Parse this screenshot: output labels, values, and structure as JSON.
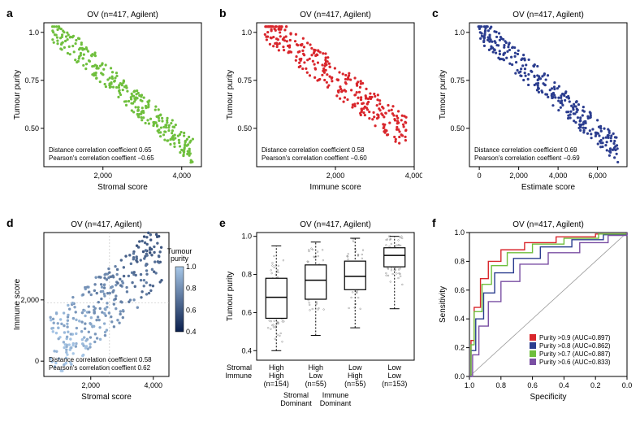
{
  "figure": {
    "dataset_label": "OV (n=417, Agilent)",
    "title_fontsize": 10,
    "axis_label_fontsize": 10,
    "tick_fontsize": 9,
    "stat_fontsize": 8,
    "background_color": "#ffffff",
    "box_stroke": "#000000"
  },
  "panels": {
    "a": {
      "label": "a",
      "type": "scatter",
      "xlabel": "Stromal score",
      "ylabel": "Tumour purity",
      "xlim": [
        500,
        4500
      ],
      "ylim": [
        0.3,
        1.05
      ],
      "xticks": [
        2000,
        4000
      ],
      "yticks": [
        0.5,
        0.75,
        1.0
      ],
      "marker_color": "#6fbf3d",
      "marker_size": 1.6,
      "stats": [
        "Distance correlation coefficient 0.65",
        "Pearson's correlation coeffient −0.65"
      ],
      "n_points": 300,
      "seed": 11,
      "slope": -0.00018,
      "intercept": 1.15,
      "noise": 0.07
    },
    "b": {
      "label": "b",
      "type": "scatter",
      "xlabel": "Immune score",
      "ylabel": "Tumour purity",
      "xlim": [
        0,
        4000
      ],
      "ylim": [
        0.3,
        1.05
      ],
      "xticks": [
        2000,
        4000
      ],
      "yticks": [
        0.5,
        0.75,
        1.0
      ],
      "marker_color": "#d9262c",
      "marker_size": 1.6,
      "stats": [
        "Distance correlation coefficient 0.58",
        "Pearson's correlation coeffient −0.60"
      ],
      "n_points": 300,
      "seed": 22,
      "slope": -0.00016,
      "intercept": 1.08,
      "noise": 0.09
    },
    "c": {
      "label": "c",
      "type": "scatter",
      "xlabel": "Estimate score",
      "ylabel": "Tumour purity",
      "xlim": [
        -500,
        7500
      ],
      "ylim": [
        0.3,
        1.05
      ],
      "xticks": [
        0,
        2000,
        4000,
        6000
      ],
      "yticks": [
        0.5,
        0.75,
        1.0
      ],
      "marker_color": "#2b3d8f",
      "marker_size": 1.6,
      "stats": [
        "Distance correlation coefficient 0.69",
        "Pearson's correlation coeffient −0.69"
      ],
      "n_points": 300,
      "seed": 33,
      "slope": -9e-05,
      "intercept": 1.02,
      "noise": 0.07
    },
    "d": {
      "label": "d",
      "type": "scatter-gradient",
      "xlabel": "Stromal score",
      "ylabel": "Immune score",
      "xlim": [
        500,
        4500
      ],
      "ylim": [
        -500,
        4200
      ],
      "xticks": [
        2000,
        4000
      ],
      "yticks": [
        0,
        2000
      ],
      "color_label": "Tumour\npurity",
      "color_ticks": [
        1.0,
        0.8,
        0.6,
        0.4
      ],
      "color_light": "#a8c8e8",
      "color_dark": "#0a1f4d",
      "marker_size": 1.7,
      "stats": [
        "Distance correlation coefficient 0.58",
        "Pearson's correlation coeffient 0.62"
      ],
      "vline": 2600,
      "hline": 1900,
      "n_points": 300,
      "seed": 44
    },
    "e": {
      "label": "e",
      "type": "boxplot",
      "ylabel": "Tumour purity",
      "ylim": [
        0.35,
        1.02
      ],
      "yticks": [
        0.4,
        0.6,
        0.8,
        1.0
      ],
      "categories": [
        {
          "top": "High",
          "bot": "High",
          "n": "(n=154)",
          "median": 0.68,
          "q1": 0.57,
          "q3": 0.78,
          "lo": 0.4,
          "hi": 0.95
        },
        {
          "top": "High",
          "bot": "Low",
          "n": "(n=55)",
          "median": 0.77,
          "q1": 0.67,
          "q3": 0.85,
          "lo": 0.48,
          "hi": 0.97
        },
        {
          "top": "Low",
          "bot": "High",
          "n": "(n=55)",
          "median": 0.79,
          "q1": 0.72,
          "q3": 0.87,
          "lo": 0.52,
          "hi": 0.99
        },
        {
          "top": "Low",
          "bot": "Low",
          "n": "(n=153)",
          "median": 0.9,
          "q1": 0.84,
          "q3": 0.94,
          "lo": 0.62,
          "hi": 1.0
        }
      ],
      "row_labels": [
        "Stromal",
        "Immune"
      ],
      "dominant_labels": [
        {
          "text": "Stromal",
          "color": "#6fbf3d"
        },
        {
          "text": "Immune",
          "color": "#d9262c"
        },
        {
          "text": "Dominant",
          "color": "#6fbf3d"
        },
        {
          "text": "Dominant",
          "color": "#d9262c"
        }
      ],
      "box_fill": "#ffffff",
      "box_stroke": "#000000",
      "jitter_color": "#888888",
      "jitter_size": 0.9,
      "seed": 55
    },
    "f": {
      "label": "f",
      "type": "roc",
      "xlabel": "Specificity",
      "ylabel": "Sensitivity",
      "xlim": [
        1.0,
        0.0
      ],
      "ylim": [
        0.0,
        1.0
      ],
      "xticks": [
        1.0,
        0.8,
        0.6,
        0.4,
        0.2,
        0.0
      ],
      "yticks": [
        0.0,
        0.2,
        0.4,
        0.6,
        0.8,
        1.0
      ],
      "curves": [
        {
          "label": "Purity >0.9 (AUC=0.897)",
          "color": "#d9262c",
          "points": [
            [
              1,
              0
            ],
            [
              0.99,
              0.25
            ],
            [
              0.97,
              0.48
            ],
            [
              0.93,
              0.68
            ],
            [
              0.88,
              0.8
            ],
            [
              0.8,
              0.88
            ],
            [
              0.65,
              0.93
            ],
            [
              0.45,
              0.97
            ],
            [
              0.2,
              0.99
            ],
            [
              0,
              1
            ]
          ]
        },
        {
          "label": "Purity >0.8 (AUC=0.862)",
          "color": "#2b3d8f",
          "points": [
            [
              1,
              0
            ],
            [
              0.99,
              0.18
            ],
            [
              0.96,
              0.4
            ],
            [
              0.91,
              0.58
            ],
            [
              0.84,
              0.72
            ],
            [
              0.72,
              0.82
            ],
            [
              0.55,
              0.9
            ],
            [
              0.35,
              0.95
            ],
            [
              0.15,
              0.985
            ],
            [
              0,
              1
            ]
          ]
        },
        {
          "label": "Purity >0.7 (AUC=0.887)",
          "color": "#6fbf3d",
          "points": [
            [
              1,
              0
            ],
            [
              0.99,
              0.22
            ],
            [
              0.97,
              0.45
            ],
            [
              0.92,
              0.64
            ],
            [
              0.86,
              0.77
            ],
            [
              0.76,
              0.86
            ],
            [
              0.6,
              0.92
            ],
            [
              0.4,
              0.96
            ],
            [
              0.18,
              0.99
            ],
            [
              0,
              1
            ]
          ]
        },
        {
          "label": "Purity >0.6 (AUC=0.833)",
          "color": "#7a4fa3",
          "points": [
            [
              1,
              0
            ],
            [
              0.98,
              0.15
            ],
            [
              0.94,
              0.35
            ],
            [
              0.88,
              0.52
            ],
            [
              0.8,
              0.66
            ],
            [
              0.68,
              0.78
            ],
            [
              0.5,
              0.86
            ],
            [
              0.3,
              0.93
            ],
            [
              0.12,
              0.98
            ],
            [
              0,
              1
            ]
          ]
        }
      ],
      "legend_fontsize": 7.5
    }
  }
}
